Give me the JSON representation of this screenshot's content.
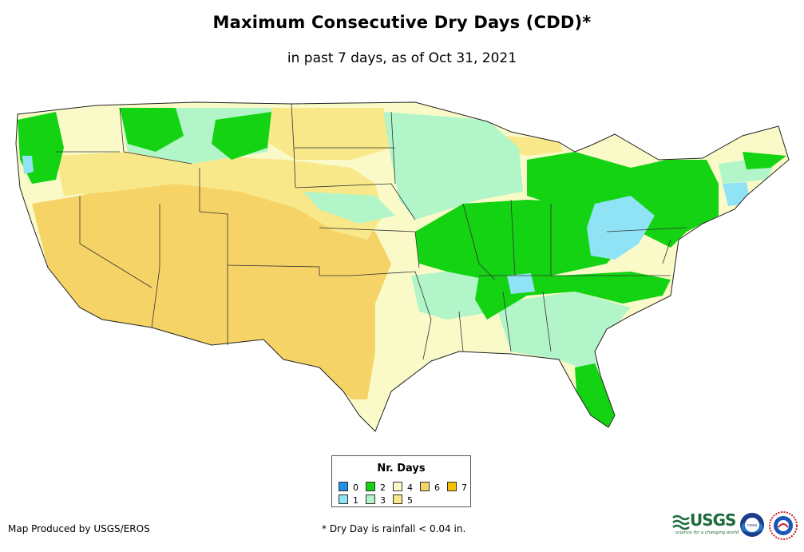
{
  "title": "Maximum Consecutive Dry Days (CDD)*",
  "subtitle": "in past 7 days, as of Oct 31, 2021",
  "legend": {
    "title": "Nr. Days",
    "items": [
      {
        "label": "0",
        "color": "#1e90e6"
      },
      {
        "label": "1",
        "color": "#8fe3f5"
      },
      {
        "label": "2",
        "color": "#13d313"
      },
      {
        "label": "3",
        "color": "#b2f5c8"
      },
      {
        "label": "4",
        "color": "#fafac8"
      },
      {
        "label": "5",
        "color": "#f8e889"
      },
      {
        "label": "6",
        "color": "#f6d367"
      },
      {
        "label": "7",
        "color": "#f5c000"
      }
    ]
  },
  "credit": "Map Produced by USGS/EROS",
  "footnote": "* Dry Day is rainfall < 0.04 in.",
  "logos": {
    "usgs": "USGS",
    "usgs_tagline": "science for a changing world",
    "noaa": "noaa"
  }
}
